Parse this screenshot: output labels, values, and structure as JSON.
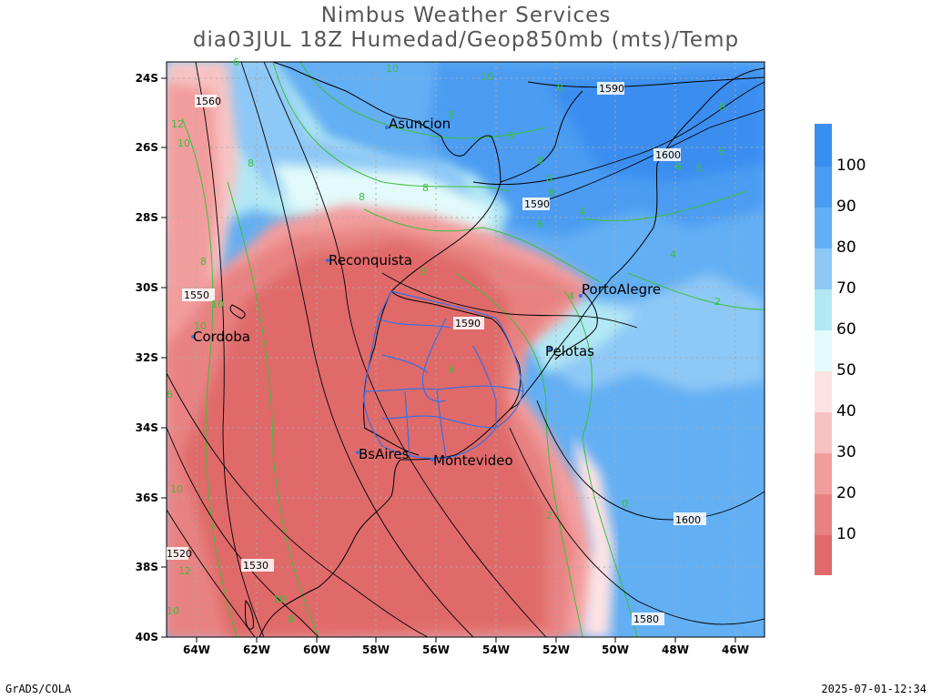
{
  "header": {
    "title": "Nimbus Weather Services",
    "subtitle": "dia03JUL 18Z Humedad/Geop850mb (mts)/Temp"
  },
  "footer": {
    "left": "GrADS/COLA",
    "right": "2025-07-01-12:34"
  },
  "axes": {
    "lat_labels": [
      "24S",
      "26S",
      "28S",
      "30S",
      "32S",
      "34S",
      "36S",
      "38S",
      "40S"
    ],
    "lon_labels": [
      "64W",
      "62W",
      "60W",
      "58W",
      "56W",
      "54W",
      "52W",
      "50W",
      "48W",
      "46W"
    ]
  },
  "cities": [
    {
      "name": "Asuncion"
    },
    {
      "name": "Reconquista"
    },
    {
      "name": "PortoAlegre"
    },
    {
      "name": "Cordoba"
    },
    {
      "name": "Pelotas"
    },
    {
      "name": "BsAires"
    },
    {
      "name": "Montevideo"
    }
  ],
  "colorbar": {
    "labels": [
      "100",
      "90",
      "80",
      "70",
      "60",
      "50",
      "40",
      "30",
      "20",
      "10"
    ],
    "colors": [
      "#3a8ef0",
      "#4b9cf2",
      "#63aff4",
      "#8ec8f6",
      "#b2e8f4",
      "#e2fafa",
      "#fde2e4",
      "#f8c2c2",
      "#f29d9d",
      "#e88282",
      "#e06a6a"
    ]
  },
  "geopotential_labels": [
    "1560",
    "1590",
    "1600",
    "1590",
    "1550",
    "1590",
    "1600",
    "1580",
    "1530",
    "1520"
  ],
  "temperature_labels": [
    "6",
    "10",
    "10",
    "8",
    "8",
    "12",
    "10",
    "8",
    "8",
    "8",
    "8",
    "6",
    "6",
    "8",
    "6",
    "6",
    "4",
    "6",
    "8",
    "8",
    "4",
    "4",
    "2",
    "10",
    "8",
    "10",
    "6",
    "10",
    "8",
    "2",
    "0",
    "10",
    "12",
    "10",
    "8",
    "6"
  ],
  "colors": {
    "map_frame": "#000000",
    "coast": "#000000",
    "uruguay_dept": "#3a6fe0",
    "temp_contour": "#3cbf3c",
    "geop_contour": "#000000"
  }
}
